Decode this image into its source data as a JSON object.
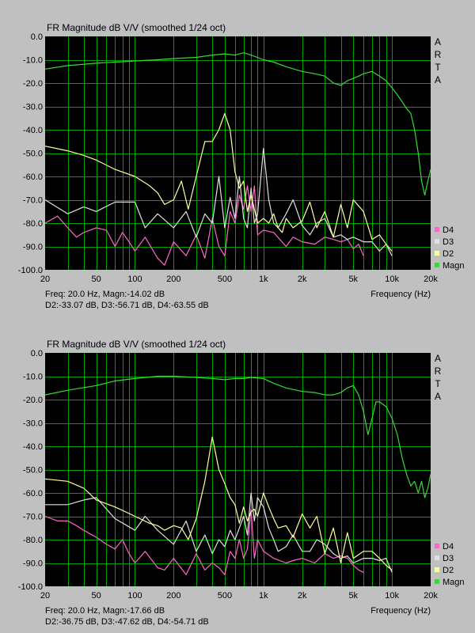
{
  "page": {
    "background": "#c0c0c0",
    "plot_background": "#000000",
    "grid_color": "#00a000"
  },
  "chart_data": [
    {
      "type": "line",
      "title": "FR Magnitude dB V/V (smoothed 1/24 oct)",
      "side_label": [
        "A",
        "R",
        "T",
        "A"
      ],
      "xlabel": "Frequency (Hz)",
      "ylabel": "",
      "x_scale": "log",
      "xlim": [
        20,
        20000
      ],
      "ylim": [
        -100,
        0
      ],
      "y_ticks": [
        "0.0",
        "-10.0",
        "-20.0",
        "-30.0",
        "-40.0",
        "-50.0",
        "-60.0",
        "-70.0",
        "-80.0",
        "-90.0",
        "-100.0"
      ],
      "x_ticks": [
        {
          "v": 20,
          "l": "20"
        },
        {
          "v": 50,
          "l": "50"
        },
        {
          "v": 100,
          "l": "100"
        },
        {
          "v": 200,
          "l": "200"
        },
        {
          "v": 500,
          "l": "500"
        },
        {
          "v": 1000,
          "l": "1k"
        },
        {
          "v": 2000,
          "l": "2k"
        },
        {
          "v": 5000,
          "l": "5k"
        },
        {
          "v": 10000,
          "l": "10k"
        },
        {
          "v": 20000,
          "l": "20k"
        }
      ],
      "grid": true,
      "legend_position": "right-bottom",
      "cursor_line1": "Freq: 20.0 Hz, Magn:-14.02 dB",
      "cursor_line2": "D2:-33.07 dB, D3:-56.71 dB, D4:-63.55 dB",
      "series": [
        {
          "name": "Magn",
          "color": "#33dd33",
          "x": [
            20,
            30,
            50,
            70,
            100,
            150,
            200,
            300,
            400,
            500,
            600,
            700,
            800,
            1000,
            1200,
            1500,
            2000,
            2500,
            3000,
            3500,
            4000,
            4500,
            5000,
            5500,
            6000,
            7000,
            8000,
            9000,
            10000,
            11000,
            12000,
            13000,
            14000,
            15000,
            16000,
            17000,
            18000,
            19000,
            20000
          ],
          "y": [
            -14,
            -12.5,
            -11.5,
            -11,
            -10.5,
            -10,
            -9.5,
            -9,
            -8,
            -7.5,
            -8,
            -7,
            -8,
            -10,
            -11,
            -13,
            -15,
            -16,
            -17,
            -20,
            -21,
            -19,
            -18,
            -17,
            -16,
            -15,
            -17,
            -19,
            -22,
            -25,
            -28,
            -31,
            -33,
            -40,
            -50,
            -62,
            -68,
            -62,
            -57
          ]
        },
        {
          "name": "D2",
          "color": "#ffff99",
          "x": [
            20,
            30,
            40,
            50,
            70,
            100,
            130,
            150,
            170,
            200,
            230,
            260,
            300,
            350,
            400,
            450,
            500,
            550,
            600,
            650,
            700,
            750,
            800,
            850,
            900,
            1000,
            1100,
            1200,
            1300,
            1400,
            1500,
            1700,
            2000,
            2300,
            2600,
            3000,
            3500,
            4000,
            4500,
            5000,
            6000,
            7000,
            8000,
            9000,
            10000
          ],
          "y": [
            -47,
            -49,
            -51,
            -53,
            -57,
            -60,
            -64,
            -67,
            -72,
            -70,
            -62,
            -74,
            -60,
            -45,
            -45,
            -40,
            -33,
            -40,
            -58,
            -65,
            -62,
            -75,
            -68,
            -74,
            -80,
            -78,
            -80,
            -76,
            -82,
            -84,
            -78,
            -82,
            -79,
            -71,
            -82,
            -75,
            -86,
            -72,
            -82,
            -70,
            -75,
            -87,
            -85,
            -89,
            -92
          ]
        },
        {
          "name": "D3",
          "color": "#e0e0e0",
          "x": [
            20,
            30,
            40,
            50,
            70,
            100,
            120,
            150,
            200,
            250,
            300,
            350,
            400,
            450,
            500,
            550,
            600,
            650,
            700,
            750,
            800,
            850,
            900,
            1000,
            1100,
            1200,
            1300,
            1500,
            1700,
            2000,
            2300,
            2600,
            3000,
            3500,
            4000,
            4500,
            5000,
            6000,
            7000,
            8000,
            9000,
            10000
          ],
          "y": [
            -70,
            -76,
            -73,
            -75,
            -71,
            -71,
            -82,
            -76,
            -82,
            -75,
            -86,
            -76,
            -80,
            -60,
            -82,
            -69,
            -78,
            -60,
            -78,
            -82,
            -65,
            -80,
            -76,
            -48,
            -70,
            -80,
            -82,
            -76,
            -70,
            -81,
            -85,
            -80,
            -78,
            -86,
            -85,
            -87,
            -86,
            -88,
            -88,
            -92,
            -89,
            -94
          ]
        },
        {
          "name": "D4",
          "color": "#ff66cc",
          "x": [
            20,
            25,
            30,
            35,
            40,
            50,
            60,
            70,
            80,
            90,
            100,
            120,
            150,
            170,
            200,
            250,
            300,
            350,
            400,
            450,
            500,
            550,
            600,
            650,
            700,
            750,
            800,
            850,
            900,
            1000,
            1200,
            1500,
            1700,
            2000,
            2500,
            3000,
            3500,
            4000,
            4500,
            5000,
            5500,
            6000
          ],
          "y": [
            -80,
            -77,
            -82,
            -86,
            -84,
            -82,
            -83,
            -90,
            -84,
            -88,
            -92,
            -86,
            -95,
            -98,
            -88,
            -94,
            -85,
            -95,
            -78,
            -90,
            -94,
            -75,
            -80,
            -68,
            -74,
            -64,
            -75,
            -64,
            -85,
            -83,
            -84,
            -90,
            -86,
            -88,
            -89,
            -86,
            -87,
            -88,
            -87,
            -91,
            -89,
            -94
          ]
        }
      ]
    },
    {
      "type": "line",
      "title": "FR Magnitude dB V/V (smoothed 1/24 oct)",
      "side_label": [
        "A",
        "R",
        "T",
        "A"
      ],
      "xlabel": "Frequency (Hz)",
      "ylabel": "",
      "x_scale": "log",
      "xlim": [
        20,
        20000
      ],
      "ylim": [
        -100,
        0
      ],
      "y_ticks": [
        "0.0",
        "-10.0",
        "-20.0",
        "-30.0",
        "-40.0",
        "-50.0",
        "-60.0",
        "-70.0",
        "-80.0",
        "-90.0",
        "-100.0"
      ],
      "x_ticks": [
        {
          "v": 20,
          "l": "20"
        },
        {
          "v": 50,
          "l": "50"
        },
        {
          "v": 100,
          "l": "100"
        },
        {
          "v": 200,
          "l": "200"
        },
        {
          "v": 500,
          "l": "500"
        },
        {
          "v": 1000,
          "l": "1k"
        },
        {
          "v": 2000,
          "l": "2k"
        },
        {
          "v": 5000,
          "l": "5k"
        },
        {
          "v": 10000,
          "l": "10k"
        },
        {
          "v": 20000,
          "l": "20k"
        }
      ],
      "grid": true,
      "legend_position": "right-bottom",
      "cursor_line1": "Freq: 20.0 Hz, Magn:-17.66 dB",
      "cursor_line2": "D2:-36.75 dB, D3:-47.62 dB, D4:-54.71 dB",
      "series": [
        {
          "name": "Magn",
          "color": "#33dd33",
          "x": [
            20,
            30,
            50,
            70,
            100,
            150,
            200,
            300,
            400,
            500,
            600,
            700,
            800,
            1000,
            1200,
            1500,
            2000,
            2500,
            3000,
            3500,
            4000,
            4500,
            5000,
            5500,
            6000,
            6500,
            7000,
            7500,
            8000,
            9000,
            10000,
            11000,
            12000,
            13000,
            14000,
            15000,
            16000,
            17000,
            18000,
            19000,
            20000
          ],
          "y": [
            -18,
            -16,
            -14,
            -12,
            -11,
            -10,
            -10,
            -10.5,
            -11,
            -11.5,
            -11,
            -11,
            -10.5,
            -11,
            -13,
            -15,
            -16.5,
            -17,
            -18,
            -18,
            -17,
            -15,
            -14,
            -18,
            -25,
            -35,
            -28,
            -21,
            -21,
            -23,
            -28,
            -35,
            -45,
            -52,
            -57,
            -55,
            -60,
            -55,
            -62,
            -58,
            -52
          ]
        },
        {
          "name": "D2",
          "color": "#ffff99",
          "x": [
            20,
            30,
            40,
            50,
            70,
            100,
            130,
            150,
            170,
            200,
            230,
            260,
            300,
            350,
            400,
            450,
            500,
            550,
            600,
            650,
            700,
            750,
            800,
            850,
            900,
            1000,
            1100,
            1200,
            1300,
            1500,
            1700,
            2000,
            2300,
            2600,
            3000,
            3500,
            4000,
            4500,
            5000,
            6000,
            7000,
            8000,
            9000,
            10000
          ],
          "y": [
            -54,
            -55,
            -58,
            -63,
            -66,
            -70,
            -73,
            -74,
            -76,
            -74,
            -75,
            -80,
            -71,
            -55,
            -36,
            -50,
            -56,
            -62,
            -65,
            -73,
            -66,
            -72,
            -68,
            -67,
            -70,
            -60,
            -66,
            -71,
            -75,
            -74,
            -79,
            -69,
            -75,
            -70,
            -86,
            -75,
            -90,
            -77,
            -88,
            -85,
            -85,
            -88,
            -91,
            -93
          ]
        },
        {
          "name": "D3",
          "color": "#e0e0e0",
          "x": [
            20,
            30,
            40,
            50,
            70,
            100,
            120,
            150,
            200,
            250,
            300,
            350,
            400,
            450,
            500,
            550,
            600,
            650,
            700,
            750,
            800,
            850,
            900,
            1000,
            1100,
            1200,
            1300,
            1500,
            1700,
            2000,
            2300,
            2600,
            3000,
            3500,
            4000,
            4500,
            5000,
            6000,
            7000,
            8000,
            9000,
            10000
          ],
          "y": [
            -65,
            -65,
            -63,
            -62,
            -71,
            -76,
            -70,
            -76,
            -82,
            -72,
            -85,
            -78,
            -86,
            -80,
            -83,
            -76,
            -80,
            -75,
            -70,
            -78,
            -60,
            -72,
            -62,
            -66,
            -75,
            -80,
            -85,
            -83,
            -78,
            -85,
            -85,
            -80,
            -82,
            -86,
            -88,
            -87,
            -90,
            -88,
            -88,
            -89,
            -88,
            -94
          ]
        },
        {
          "name": "D4",
          "color": "#ff66cc",
          "x": [
            20,
            25,
            30,
            35,
            40,
            50,
            60,
            70,
            80,
            90,
            100,
            120,
            150,
            170,
            200,
            250,
            300,
            350,
            400,
            450,
            500,
            550,
            600,
            650,
            700,
            750,
            800,
            850,
            900,
            1000,
            1200,
            1500,
            1700,
            2000,
            2500,
            3000,
            3500,
            4000,
            4500,
            5000,
            5500,
            6000
          ],
          "y": [
            -70,
            -72,
            -72,
            -74,
            -76,
            -79,
            -82,
            -84,
            -80,
            -86,
            -90,
            -85,
            -92,
            -93,
            -88,
            -95,
            -86,
            -93,
            -90,
            -92,
            -95,
            -85,
            -88,
            -80,
            -88,
            -84,
            -67,
            -88,
            -80,
            -85,
            -88,
            -90,
            -89,
            -88,
            -90,
            -86,
            -88,
            -87,
            -88,
            -91,
            -93,
            -94
          ]
        }
      ]
    }
  ]
}
